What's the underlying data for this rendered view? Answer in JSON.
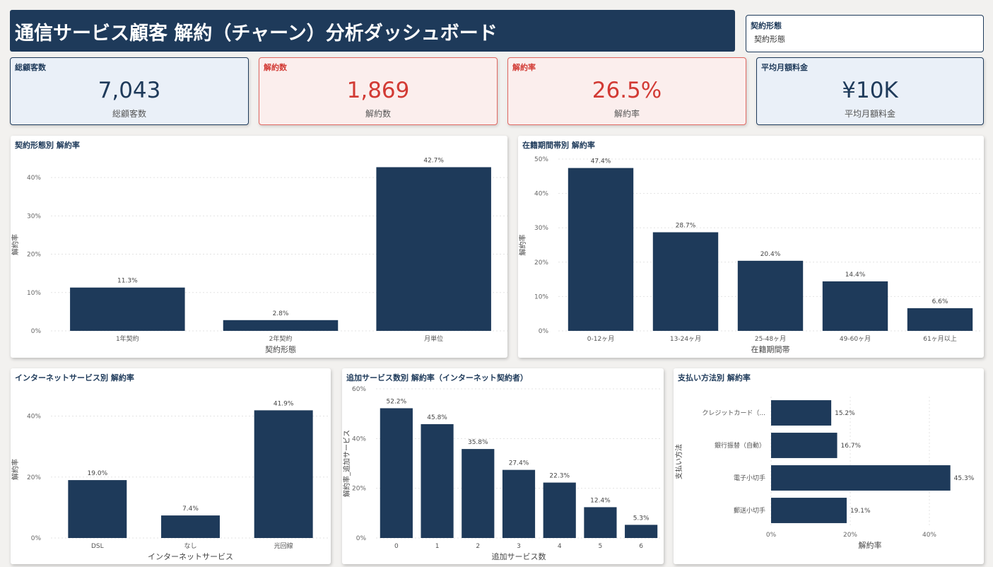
{
  "header": {
    "title": "通信サービス顧客 解約（チャーン）分析ダッシュボード"
  },
  "slicer": {
    "title": "契約形態",
    "value": "契約形態"
  },
  "kpis": {
    "total": {
      "title": "総顧客数",
      "value": "7,043",
      "sub": "総顧客数"
    },
    "churn": {
      "title": "解約数",
      "value": "1,869",
      "sub": "解約数"
    },
    "rate": {
      "title": "解約率",
      "value": "26.5%",
      "sub": "解約率"
    },
    "charge": {
      "title": "平均月額料金",
      "value": "¥10K",
      "sub": "平均月額料金"
    }
  },
  "colors": {
    "bar": "#1e3a5a",
    "accent_red": "#d23a34",
    "kpi_blue_bg": "#eaf0f8",
    "kpi_red_bg": "#fbeeed"
  },
  "chart_data": [
    {
      "id": "contract",
      "type": "bar",
      "title": "契約形態別 解約率",
      "xlabel": "契約形態",
      "ylabel": "解約率",
      "categories": [
        "1年契約",
        "2年契約",
        "月単位"
      ],
      "values": [
        11.3,
        2.8,
        42.7
      ],
      "labels": [
        "11.3%",
        "2.8%",
        "42.7%"
      ],
      "yticks": [
        0,
        10,
        20,
        30,
        40
      ],
      "ytick_labels": [
        "0%",
        "10%",
        "20%",
        "30%",
        "40%"
      ],
      "ylim": [
        0,
        45
      ],
      "grid": true
    },
    {
      "id": "tenure",
      "type": "bar",
      "title": "在籍期間帯別 解約率",
      "xlabel": "在籍期間帯",
      "ylabel": "解約率",
      "categories": [
        "0-12ヶ月",
        "13-24ヶ月",
        "25-48ヶ月",
        "49-60ヶ月",
        "61ヶ月以上"
      ],
      "values": [
        47.4,
        28.7,
        20.4,
        14.4,
        6.6
      ],
      "labels": [
        "47.4%",
        "28.7%",
        "20.4%",
        "14.4%",
        "6.6%"
      ],
      "yticks": [
        0,
        10,
        20,
        30,
        40,
        50
      ],
      "ytick_labels": [
        "0%",
        "10%",
        "20%",
        "30%",
        "40%",
        "50%"
      ],
      "ylim": [
        0,
        50
      ],
      "grid": true
    },
    {
      "id": "internet",
      "type": "bar",
      "title": "インターネットサービス別 解約率",
      "xlabel": "インターネットサービス",
      "ylabel": "解約率",
      "categories": [
        "DSL",
        "なし",
        "光回線"
      ],
      "values": [
        19.0,
        7.4,
        41.9
      ],
      "labels": [
        "19.0%",
        "7.4%",
        "41.9%"
      ],
      "yticks": [
        0,
        20,
        40
      ],
      "ytick_labels": [
        "0%",
        "20%",
        "40%"
      ],
      "ylim": [
        0,
        45
      ],
      "grid": true
    },
    {
      "id": "addon",
      "type": "bar",
      "title": "追加サービス数別 解約率（インターネット契約者）",
      "xlabel": "追加サービス数",
      "ylabel": "解約率_追加サービス",
      "categories": [
        "0",
        "1",
        "2",
        "3",
        "4",
        "5",
        "6"
      ],
      "values": [
        52.2,
        45.8,
        35.8,
        27.4,
        22.3,
        12.4,
        5.3
      ],
      "labels": [
        "52.2%",
        "45.8%",
        "35.8%",
        "27.4%",
        "22.3%",
        "12.4%",
        "5.3%"
      ],
      "yticks": [
        0,
        20,
        40,
        60
      ],
      "ytick_labels": [
        "0%",
        "20%",
        "40%",
        "60%"
      ],
      "ylim": [
        0,
        60
      ],
      "grid": true
    },
    {
      "id": "payment",
      "type": "bar",
      "orientation": "horizontal",
      "title": "支払い方法別 解約率",
      "xlabel": "解約率",
      "ylabel": "支払い方法",
      "categories": [
        "クレジットカード（...",
        "銀行振替（自動）",
        "電子小切手",
        "郵送小切手"
      ],
      "values": [
        15.2,
        16.7,
        45.3,
        19.1
      ],
      "labels": [
        "15.2%",
        "16.7%",
        "45.3%",
        "19.1%"
      ],
      "xticks": [
        0,
        20,
        40
      ],
      "xtick_labels": [
        "0%",
        "20%",
        "40%"
      ],
      "xlim": [
        0,
        50
      ],
      "grid": true
    }
  ]
}
